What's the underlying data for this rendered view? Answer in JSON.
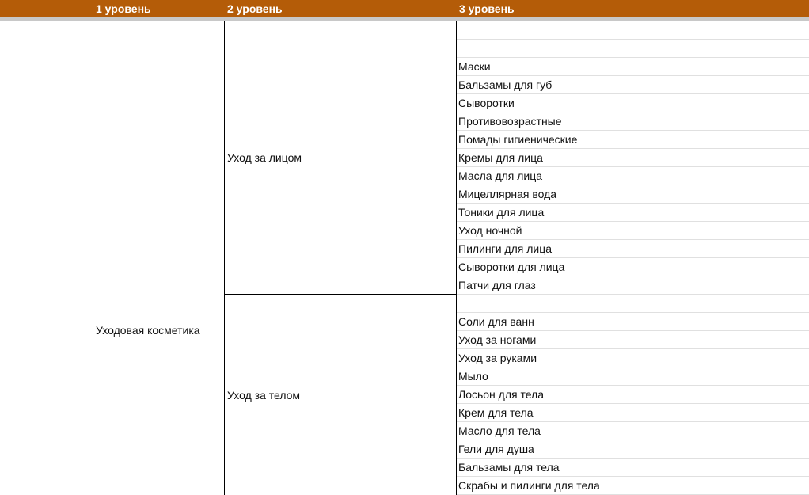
{
  "header": {
    "col1": "1 уровень",
    "col2": "2 уровень",
    "col3": "3 уровень"
  },
  "level1": "Уходовая косметика",
  "groups": [
    {
      "name": "Уход за лицом",
      "items": [
        "",
        "",
        "Маски",
        "Бальзамы для губ",
        "Сыворотки",
        "Противовозрастные",
        "Помады гигиенические",
        "Кремы для лица",
        "Масла для лица",
        "Мицеллярная вода",
        "Тоники для лица",
        "Уход ночной",
        "Пилинги для лица",
        "Сыворотки для лица",
        "Патчи для глаз"
      ]
    },
    {
      "name": "Уход за телом",
      "items": [
        "",
        "Соли для ванн",
        "Уход за ногами",
        "Уход за руками",
        "Мыло",
        "Лосьон для тела",
        "Крем для тела",
        "Масло для тела",
        "Гели для душа",
        "Бальзамы для тела",
        "Скрабы и пилинги для тела"
      ]
    }
  ],
  "colors": {
    "header": "#b45c08"
  }
}
